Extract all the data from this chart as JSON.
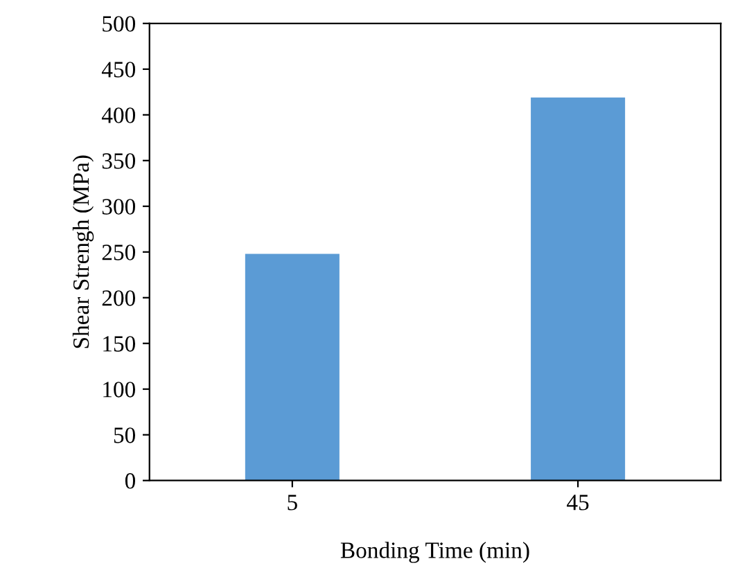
{
  "chart_data": {
    "type": "bar",
    "xlabel": "Bonding Time (min)",
    "ylabel": "Shear Strengh (MPa)",
    "categories": [
      "5",
      "45"
    ],
    "values": [
      248,
      419
    ],
    "color": "#5b9bd5",
    "ylim": [
      0,
      500
    ],
    "yticks": [
      0,
      50,
      100,
      150,
      200,
      250,
      300,
      350,
      400,
      450,
      500
    ],
    "grid": false
  }
}
